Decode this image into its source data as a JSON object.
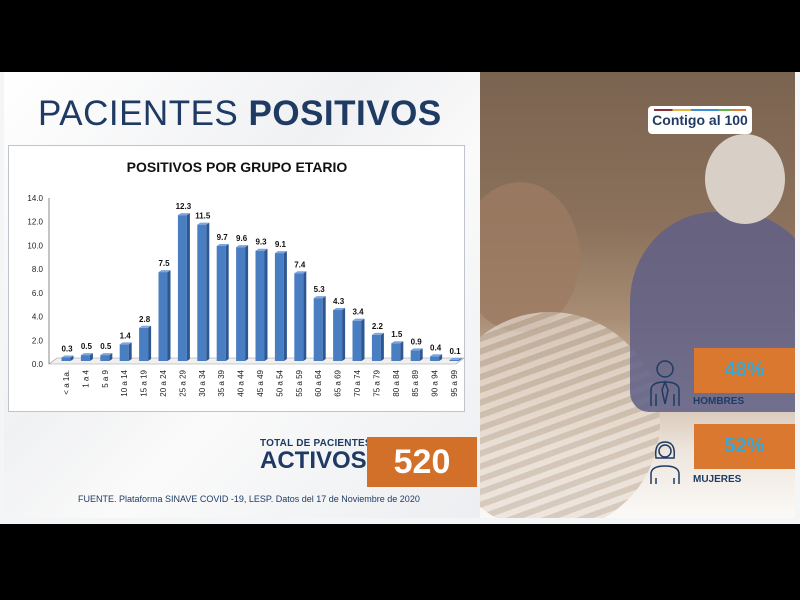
{
  "header": {
    "title_light": "PACIENTES",
    "title_bold": "POSITIVOS"
  },
  "chart_data": {
    "type": "bar",
    "title": "POSITIVOS POR GRUPO ETARIO",
    "categories": [
      "< a 1a.",
      "1 a 4",
      "5 a 9",
      "10 a 14",
      "15 a 19",
      "20 a 24",
      "25 a 29",
      "30 a 34",
      "35 a 39",
      "40 a 44",
      "45 a 49",
      "50 a 54",
      "55 a 59",
      "60 a 64",
      "65 a 69",
      "70 a 74",
      "75 a 79",
      "80 a 84",
      "85 a 89",
      "90 a 94",
      "95 a 99"
    ],
    "values": [
      0.3,
      0.5,
      0.5,
      1.4,
      2.8,
      7.5,
      12.3,
      11.5,
      9.7,
      9.6,
      9.3,
      9.1,
      7.4,
      5.3,
      4.3,
      3.4,
      2.2,
      1.5,
      0.9,
      0.4,
      0.1
    ],
    "yticks": [
      "0.0",
      "2.0",
      "4.0",
      "6.0",
      "8.0",
      "10.0",
      "12.0",
      "14.0"
    ],
    "ylim": [
      0,
      14
    ],
    "xlabel": "",
    "ylabel": "",
    "bar_color": "#4a7ec2",
    "grid": false
  },
  "total": {
    "label_small": "TOTAL DE PACIENTES",
    "label_large": "ACTIVOS",
    "value": "520"
  },
  "source": "FUENTE. Plataforma SINAVE COVID -19, LESP. Datos del 17 de Noviembre de 2020",
  "logo": "Contigo al 100",
  "gender": {
    "men": {
      "pct": "48%",
      "label": "HOMBRES",
      "icon": "man-icon"
    },
    "women": {
      "pct": "52%",
      "label": "MUJERES",
      "icon": "woman-icon"
    }
  },
  "colors": {
    "accent": "#d2702a",
    "navy": "#1f3b63",
    "pct_text": "#35a8d8"
  }
}
